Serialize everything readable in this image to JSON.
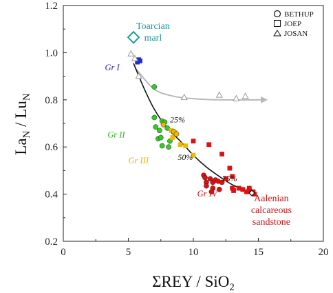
{
  "chart_data": {
    "type": "scatter",
    "xlabel_main": "ΣREY / SiO",
    "xlabel_sub": "2",
    "ylabel_main": "La",
    "ylabel_sub1": "N",
    "ylabel_mid": " / Lu",
    "ylabel_sub2": "N",
    "xlim": [
      0,
      20
    ],
    "ylim": [
      0.2,
      1.2
    ],
    "xticks": [
      "0",
      "5",
      "10",
      "15",
      "20"
    ],
    "yticks": [
      "0.2",
      "0.4",
      "0.6",
      "0.8",
      "1.0",
      "1.2"
    ],
    "legend": [
      {
        "marker": "circle",
        "label": "BETHUP"
      },
      {
        "marker": "square",
        "label": "JOEP"
      },
      {
        "marker": "triangle",
        "label": "JOSAN"
      }
    ],
    "group_labels": [
      {
        "label": "Gr I",
        "color": "#2222cc",
        "x": 3.2,
        "y": 0.925
      },
      {
        "label": "Gr II",
        "color": "#33bb22",
        "x": 3.4,
        "y": 0.64
      },
      {
        "label": "Gr III",
        "color": "#e8b400",
        "x": 5.0,
        "y": 0.53
      },
      {
        "label": "Gr IV",
        "color": "#dd1111",
        "x": 10.3,
        "y": 0.39
      }
    ],
    "mixing_labels": [
      {
        "label": "25%",
        "x": 8.2,
        "y": 0.705
      },
      {
        "label": "50%",
        "x": 8.8,
        "y": 0.545
      },
      {
        "label": "75%",
        "x": 12.2,
        "y": 0.455
      }
    ],
    "annotations": [
      {
        "lines": [
          "Toarcian",
          "marl"
        ],
        "color": "#1a9a9a",
        "x": 6.9,
        "y": 1.1
      },
      {
        "lines": [
          "Aalenian",
          "calcareous",
          "sandstone"
        ],
        "color": "#cc1111",
        "x": 16.0,
        "y": 0.37
      }
    ],
    "toarcian_marl": {
      "x": 5.4,
      "y": 1.065,
      "color": "#1a9a9a"
    },
    "aalenian_sandstone": {
      "x": 14.5,
      "y": 0.405
    },
    "mixing_curve": [
      [
        5.4,
        0.955
      ],
      [
        6.2,
        0.85
      ],
      [
        7.0,
        0.76
      ],
      [
        8.0,
        0.68
      ],
      [
        9.0,
        0.625
      ],
      [
        10.0,
        0.565
      ],
      [
        11.0,
        0.515
      ],
      [
        12.0,
        0.475
      ],
      [
        13.0,
        0.44
      ],
      [
        14.5,
        0.405
      ]
    ],
    "josan_trend": [
      [
        5.6,
        0.93
      ],
      [
        7.0,
        0.845
      ],
      [
        8.5,
        0.815
      ],
      [
        10.0,
        0.805
      ],
      [
        12.0,
        0.8
      ],
      [
        15.3,
        0.8
      ]
    ],
    "series": [
      {
        "name": "Gr I",
        "color": "#1f2fd0",
        "marker": "square",
        "points": [
          [
            5.8,
            0.97
          ],
          [
            5.9,
            0.965
          ],
          [
            5.7,
            0.96
          ]
        ]
      },
      {
        "name": "Gr II",
        "color": "#33cc22",
        "marker": "circle",
        "points": [
          [
            7.0,
            0.855
          ],
          [
            7.0,
            0.725
          ],
          [
            7.6,
            0.71
          ],
          [
            7.8,
            0.705
          ],
          [
            7.1,
            0.685
          ],
          [
            7.4,
            0.67
          ],
          [
            8.0,
            0.68
          ],
          [
            7.3,
            0.635
          ],
          [
            7.5,
            0.64
          ],
          [
            8.2,
            0.625
          ],
          [
            7.6,
            0.605
          ],
          [
            8.1,
            0.6
          ]
        ]
      },
      {
        "name": "Gr III",
        "color": "#f0b800",
        "marker": "square",
        "points": [
          [
            8.3,
            0.67
          ],
          [
            8.6,
            0.66
          ],
          [
            9.0,
            0.61
          ],
          [
            9.4,
            0.605
          ],
          [
            8.4,
            0.64
          ],
          [
            10.0,
            0.565
          ]
        ]
      },
      {
        "name": "Gr III",
        "color": "#f0b800",
        "marker": "circle",
        "points": [
          [
            7.7,
            0.695
          ],
          [
            8.5,
            0.665
          ],
          [
            8.7,
            0.655
          ]
        ]
      },
      {
        "name": "Gr IV",
        "color": "#dd1111",
        "marker": "circle",
        "points": [
          [
            10.8,
            0.48
          ],
          [
            10.9,
            0.47
          ],
          [
            11.0,
            0.45
          ],
          [
            11.3,
            0.465
          ],
          [
            11.5,
            0.45
          ],
          [
            11.7,
            0.46
          ],
          [
            11.9,
            0.455
          ],
          [
            12.2,
            0.45
          ],
          [
            11.0,
            0.435
          ],
          [
            11.5,
            0.425
          ],
          [
            12.0,
            0.42
          ],
          [
            11.4,
            0.41
          ],
          [
            14.3,
            0.42
          ],
          [
            14.5,
            0.405
          ]
        ]
      },
      {
        "name": "Gr IV",
        "color": "#dd1111",
        "marker": "square",
        "points": [
          [
            10.0,
            0.625
          ],
          [
            11.2,
            0.61
          ],
          [
            12.2,
            0.57
          ],
          [
            12.8,
            0.51
          ],
          [
            13.0,
            0.475
          ],
          [
            12.5,
            0.465
          ],
          [
            13.0,
            0.425
          ],
          [
            13.1,
            0.415
          ],
          [
            13.5,
            0.425
          ],
          [
            13.8,
            0.42
          ],
          [
            14.1,
            0.41
          ],
          [
            14.3,
            0.425
          ],
          [
            14.6,
            0.41
          ],
          [
            14.7,
            0.4
          ]
        ]
      },
      {
        "name": "JOSAN",
        "color": "#999999",
        "marker": "triangle",
        "points": [
          [
            5.2,
            0.995
          ],
          [
            5.5,
            0.975
          ],
          [
            5.8,
            0.9
          ],
          [
            9.3,
            0.81
          ],
          [
            12.0,
            0.82
          ],
          [
            13.3,
            0.805
          ],
          [
            14.0,
            0.815
          ]
        ]
      }
    ]
  }
}
